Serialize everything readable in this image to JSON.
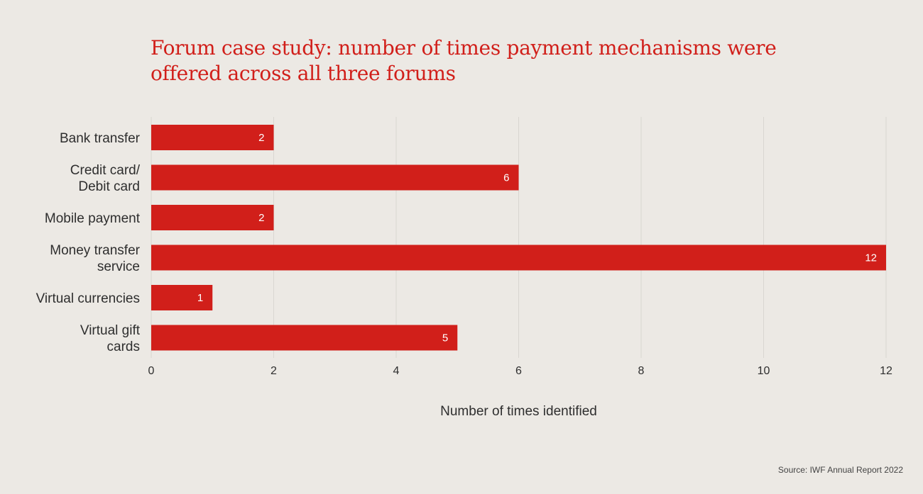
{
  "title_lines": [
    "Forum case study: number of times payment mechanisms were",
    "offered across all three forums"
  ],
  "source": "Source: IWF Annual Report 2022",
  "colors": {
    "bar": "#d11f1a",
    "title": "#d11f1a",
    "background": "#ece9e4",
    "grid": "#d9d6d1",
    "text": "#2e2e2e"
  },
  "chart_data": {
    "type": "bar",
    "orientation": "horizontal",
    "title": "Forum case study: number of times payment mechanisms were offered across all three forums",
    "categories": [
      [
        "Bank transfer"
      ],
      [
        "Credit card/",
        "Debit card"
      ],
      [
        "Mobile payment"
      ],
      [
        "Money transfer",
        "service"
      ],
      [
        "Virtual currencies"
      ],
      [
        "Virtual gift",
        "cards"
      ]
    ],
    "values": [
      2,
      6,
      2,
      12,
      1,
      5
    ],
    "data_labels": [
      "2",
      "6",
      "2",
      "12",
      "1",
      "5"
    ],
    "xlabel": "Number of times identified",
    "ylabel": "",
    "xlim": [
      0,
      12
    ],
    "xticks": [
      0,
      2,
      4,
      6,
      8,
      10,
      12
    ],
    "grid": "vertical",
    "legend": "none"
  }
}
